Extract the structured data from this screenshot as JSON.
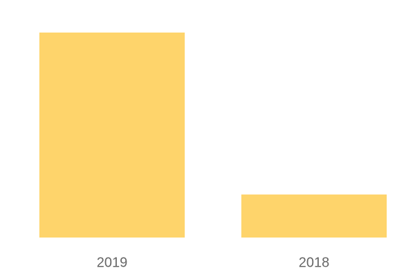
{
  "chart_data": {
    "type": "bar",
    "categories": [
      "2019",
      "2018"
    ],
    "values": [
      100,
      21
    ],
    "color": "#fed46b",
    "ylim": [
      0,
      100
    ]
  }
}
